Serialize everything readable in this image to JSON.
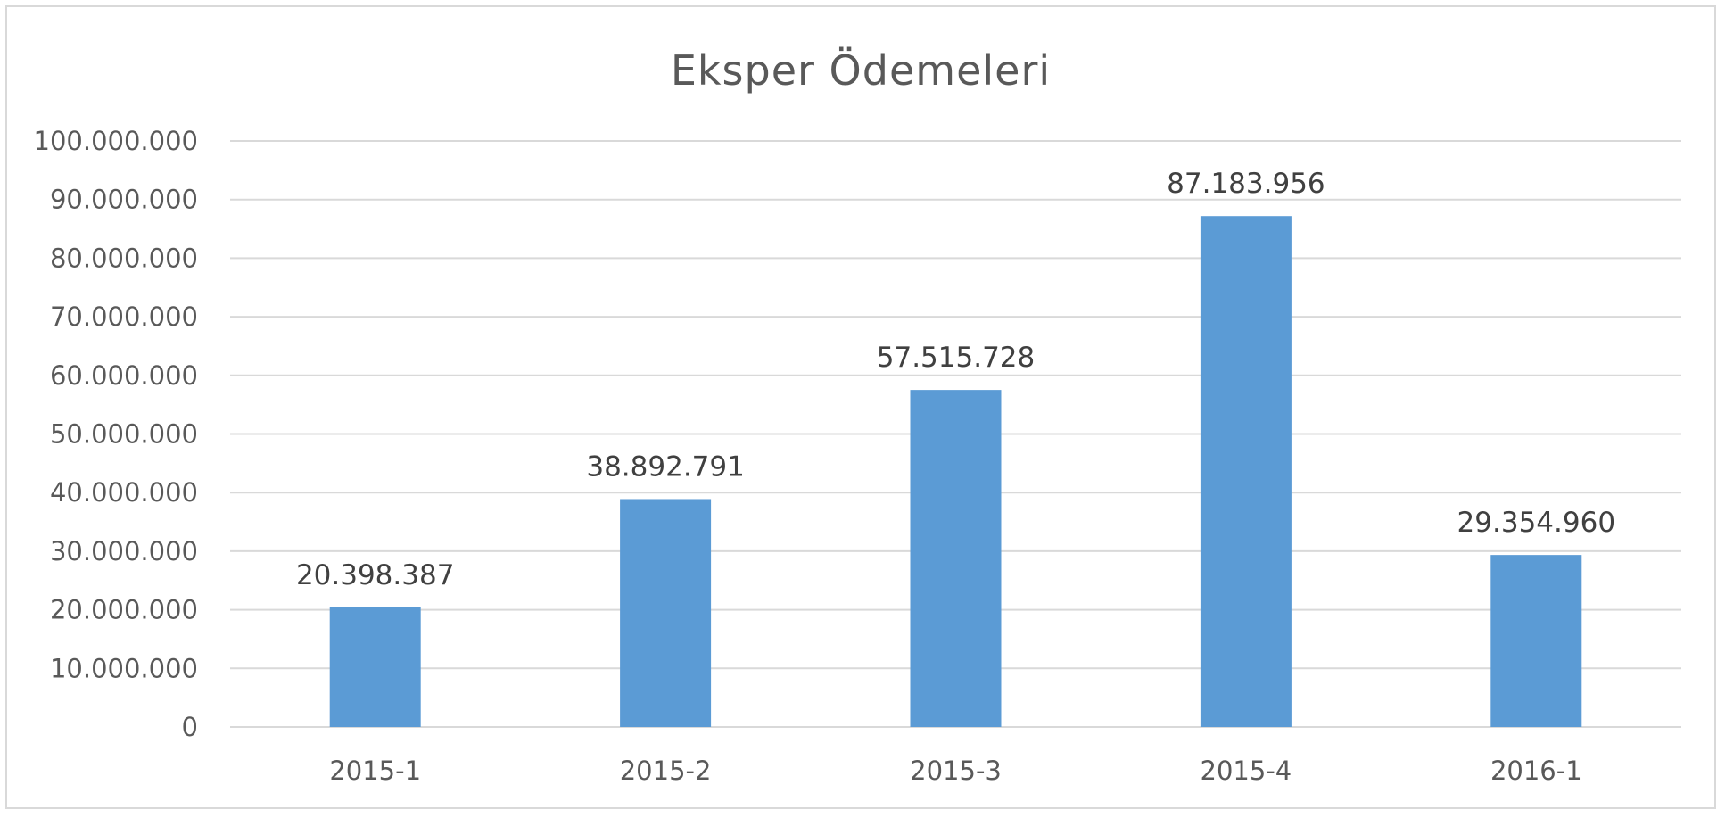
{
  "chart_data": {
    "type": "bar",
    "title": "Eksper Ödemeleri",
    "categories": [
      "2015-1",
      "2015-2",
      "2015-3",
      "2015-4",
      "2016-1"
    ],
    "values": [
      20398387,
      38892791,
      57515728,
      87183956,
      29354960
    ],
    "data_labels": [
      "20.398.387",
      "38.892.791",
      "57.515.728",
      "87.183.956",
      "29.354.960"
    ],
    "yticks": [
      0,
      10000000,
      20000000,
      30000000,
      40000000,
      50000000,
      60000000,
      70000000,
      80000000,
      90000000,
      100000000
    ],
    "ytick_labels": [
      "0",
      "10.000.000",
      "20.000.000",
      "30.000.000",
      "40.000.000",
      "50.000.000",
      "60.000.000",
      "70.000.000",
      "80.000.000",
      "90.000.000",
      "100.000.000"
    ],
    "ylim": [
      0,
      100000000
    ],
    "grid": true,
    "legend": "none",
    "colors": {
      "bar": "#5b9bd5",
      "grid": "#d9d9d9",
      "text": "#595959"
    }
  }
}
